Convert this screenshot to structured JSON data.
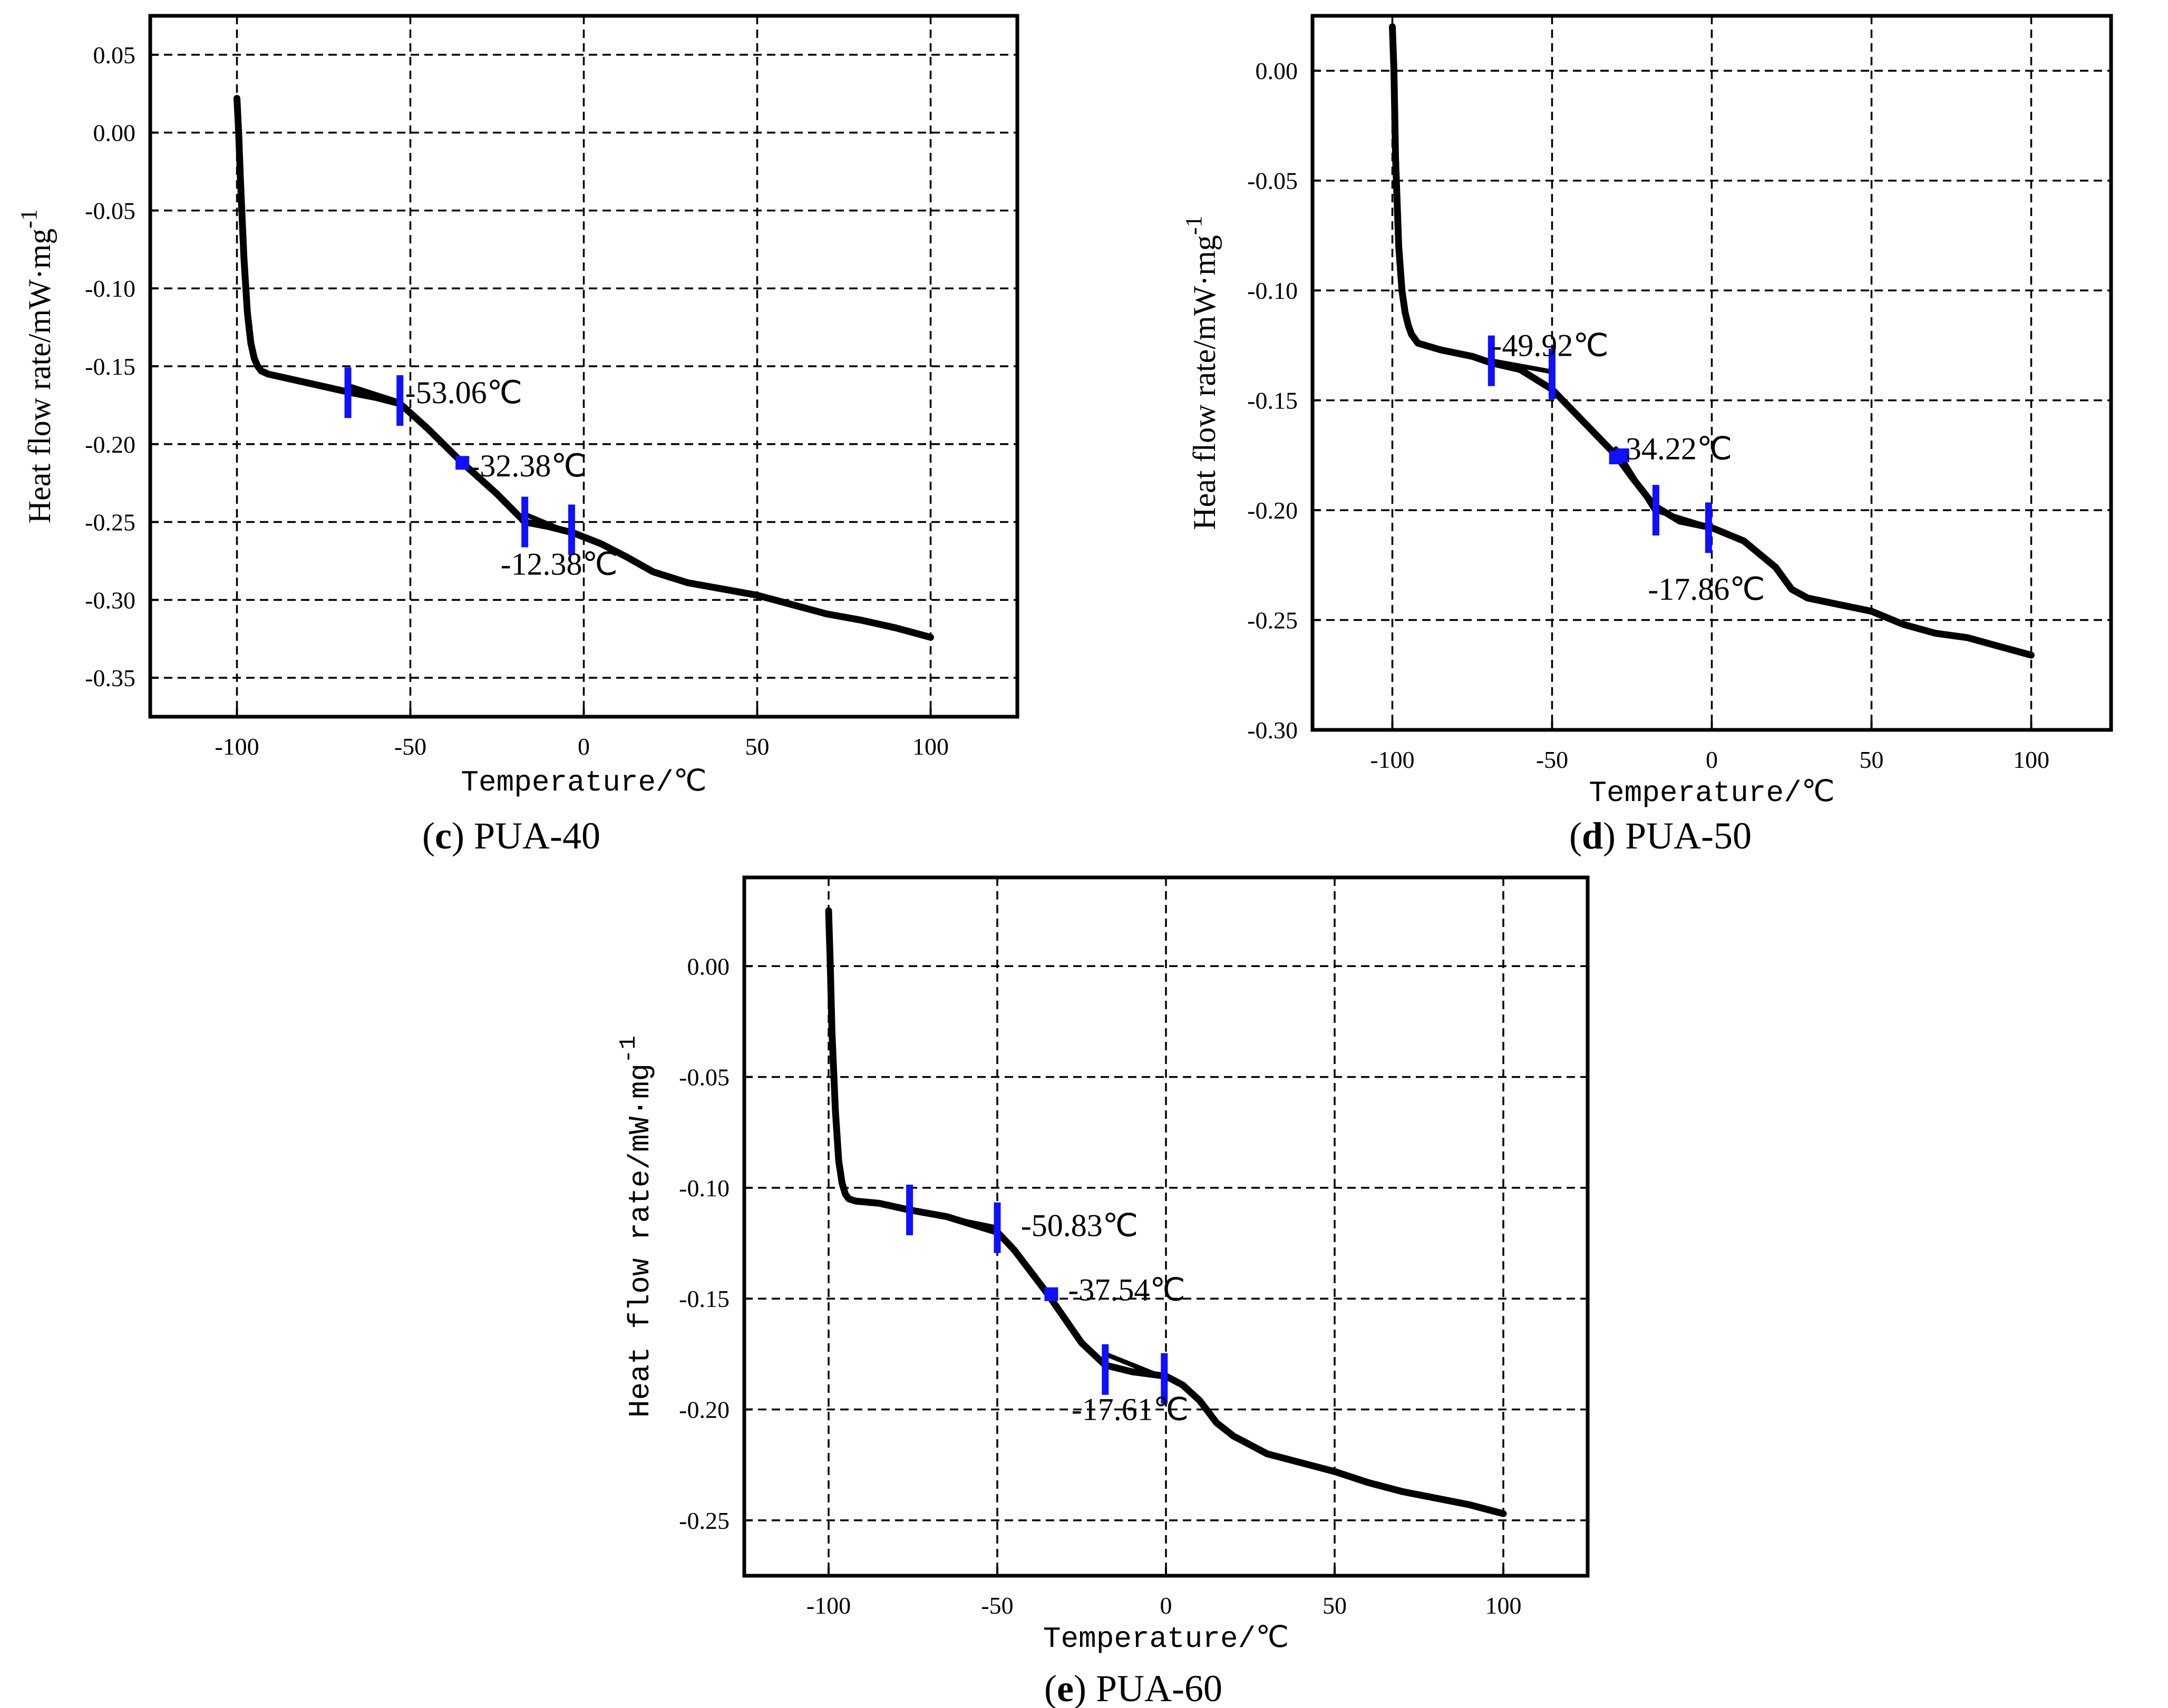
{
  "chart_data": [
    {
      "type": "line",
      "id": "c",
      "caption_letter": "c",
      "caption_text": " PUA-40",
      "xlabel": "Temperature/℃",
      "ylabel": "Heat flow rate/mW·mg",
      "ylabel_sup": "-1",
      "xlim": [
        -125,
        125
      ],
      "ylim": [
        -0.375,
        0.075
      ],
      "xticks": [
        -100,
        -50,
        0,
        50,
        100
      ],
      "xtick_labels": [
        "-100",
        "-50",
        "0",
        "50",
        "100"
      ],
      "yticks": [
        0.05,
        0.0,
        -0.05,
        -0.1,
        -0.15,
        -0.2,
        -0.25,
        -0.3,
        -0.35
      ],
      "ytick_labels": [
        "0.05",
        "0.00",
        "-0.05",
        "-0.10",
        "-0.15",
        "-0.20",
        "-0.25",
        "-0.30",
        "-0.35"
      ],
      "grid": true,
      "series": [
        {
          "name": "PUA-40",
          "x": [
            -100,
            -99.5,
            -99,
            -98,
            -97,
            -96,
            -95,
            -94,
            -93,
            -91,
            -85,
            -75,
            -67,
            -60,
            -53,
            -45,
            -35,
            -25,
            -17,
            -10,
            -3,
            5,
            12,
            20,
            30,
            40,
            50,
            60,
            70,
            80,
            90,
            100
          ],
          "y": [
            0.022,
            0.0,
            -0.03,
            -0.08,
            -0.115,
            -0.135,
            -0.145,
            -0.15,
            -0.153,
            -0.155,
            -0.158,
            -0.163,
            -0.167,
            -0.17,
            -0.174,
            -0.19,
            -0.212,
            -0.232,
            -0.25,
            -0.253,
            -0.257,
            -0.264,
            -0.272,
            -0.282,
            -0.289,
            -0.293,
            -0.297,
            -0.303,
            -0.309,
            -0.313,
            -0.318,
            -0.324
          ]
        }
      ],
      "tangents": [
        [
          -67,
          -0.163,
          -53,
          -0.173
        ],
        [
          -17,
          -0.245,
          -3,
          -0.258
        ]
      ],
      "markers": [
        {
          "type": "bar",
          "x": -68,
          "y": -0.167
        },
        {
          "type": "bar",
          "x": -53,
          "y": -0.172
        },
        {
          "type": "dot",
          "x": -35,
          "y": -0.212
        },
        {
          "type": "bar",
          "x": -17,
          "y": -0.25
        },
        {
          "type": "bar",
          "x": -3.5,
          "y": -0.255
        }
      ],
      "annotations": [
        {
          "text": "-53.06℃",
          "x": -51.5,
          "y": -0.167
        },
        {
          "text": "-32.38℃",
          "x": -33,
          "y": -0.214
        },
        {
          "text": "-12.38℃",
          "x": -24,
          "y": -0.277
        }
      ]
    },
    {
      "type": "line",
      "id": "d",
      "caption_letter": "d",
      "caption_text": " PUA-50",
      "xlabel": "Temperature/℃",
      "ylabel": "Heat flow rate/mW·mg",
      "ylabel_sup": "-1",
      "xlim": [
        -125,
        125
      ],
      "ylim": [
        -0.3,
        0.025
      ],
      "xticks": [
        -100,
        -50,
        0,
        50,
        100
      ],
      "xtick_labels": [
        "-100",
        "-50",
        "0",
        "50",
        "100"
      ],
      "yticks": [
        0.0,
        -0.05,
        -0.1,
        -0.15,
        -0.2,
        -0.25,
        -0.3
      ],
      "ytick_labels": [
        "0.00",
        "-0.05",
        "-0.10",
        "-0.15",
        "-0.20",
        "-0.25",
        "-0.30"
      ],
      "grid": true,
      "series": [
        {
          "name": "PUA-50",
          "x": [
            -100,
            -99.5,
            -99,
            -98,
            -97,
            -96,
            -95,
            -94,
            -92,
            -85,
            -75,
            -69,
            -60,
            -50,
            -40,
            -30,
            -25,
            -18,
            -10,
            0,
            10,
            20,
            25,
            30,
            40,
            50,
            60,
            70,
            80,
            90,
            100
          ],
          "y": [
            0.02,
            0.0,
            -0.04,
            -0.08,
            -0.1,
            -0.11,
            -0.116,
            -0.12,
            -0.124,
            -0.127,
            -0.13,
            -0.133,
            -0.136,
            -0.145,
            -0.16,
            -0.175,
            -0.185,
            -0.198,
            -0.205,
            -0.208,
            -0.214,
            -0.226,
            -0.236,
            -0.24,
            -0.243,
            -0.246,
            -0.252,
            -0.256,
            -0.258,
            -0.262,
            -0.266
          ]
        }
      ],
      "tangents": [
        [
          -69,
          -0.132,
          -50,
          -0.137
        ],
        [
          -30,
          -0.172,
          -18,
          -0.2
        ],
        [
          -18,
          -0.2,
          0,
          -0.208
        ]
      ],
      "markers": [
        {
          "type": "bar",
          "x": -69,
          "y": -0.132
        },
        {
          "type": "bar",
          "x": -50,
          "y": -0.138
        },
        {
          "type": "dot",
          "x": -30,
          "y": -0.176
        },
        {
          "type": "dot",
          "x": -28,
          "y": -0.175
        },
        {
          "type": "bar",
          "x": -17.5,
          "y": -0.2
        },
        {
          "type": "bar",
          "x": -1,
          "y": -0.208
        }
      ],
      "annotations": [
        {
          "text": "-49.92℃",
          "x": -69,
          "y": -0.125
        },
        {
          "text": "34.22℃",
          "x": -27,
          "y": -0.172
        },
        {
          "text": "-17.86℃",
          "x": -20,
          "y": -0.236
        }
      ]
    },
    {
      "type": "line",
      "id": "e",
      "caption_letter": "e",
      "caption_text": " PUA-60",
      "xlabel": "Temperature/℃",
      "ylabel": "Heat flow rate/mW·mg",
      "ylabel_sup": "-1",
      "ylabel_mono": true,
      "xlim": [
        -125,
        125
      ],
      "ylim": [
        -0.275,
        0.04
      ],
      "xticks": [
        -100,
        -50,
        0,
        50,
        100
      ],
      "xtick_labels": [
        "-100",
        "-50",
        "0",
        "50",
        "100"
      ],
      "yticks": [
        0.0,
        -0.05,
        -0.1,
        -0.15,
        -0.2,
        -0.25
      ],
      "ytick_labels": [
        "0.00",
        "-0.05",
        "-0.10",
        "-0.15",
        "-0.20",
        "-0.25"
      ],
      "grid": true,
      "series": [
        {
          "name": "PUA-60",
          "x": [
            -100,
            -99.5,
            -99,
            -98,
            -97,
            -96,
            -95,
            -94,
            -92,
            -85,
            -76,
            -65,
            -50,
            -45,
            -35,
            -25,
            -18,
            -10,
            0,
            5,
            10,
            15,
            20,
            25,
            30,
            40,
            50,
            60,
            70,
            80,
            90,
            100
          ],
          "y": [
            0.025,
            0.0,
            -0.03,
            -0.065,
            -0.088,
            -0.098,
            -0.103,
            -0.105,
            -0.106,
            -0.107,
            -0.11,
            -0.113,
            -0.12,
            -0.128,
            -0.148,
            -0.17,
            -0.18,
            -0.183,
            -0.185,
            -0.189,
            -0.196,
            -0.206,
            -0.212,
            -0.216,
            -0.22,
            -0.224,
            -0.228,
            -0.233,
            -0.237,
            -0.24,
            -0.243,
            -0.247
          ]
        }
      ],
      "tangents": [
        [
          -76,
          -0.11,
          -50,
          -0.118
        ],
        [
          -18,
          -0.175,
          0,
          -0.186
        ]
      ],
      "markers": [
        {
          "type": "bar",
          "x": -76,
          "y": -0.11
        },
        {
          "type": "bar",
          "x": -50,
          "y": -0.118
        },
        {
          "type": "dot",
          "x": -34,
          "y": -0.148
        },
        {
          "type": "bar",
          "x": -18,
          "y": -0.182
        },
        {
          "type": "bar",
          "x": -0.5,
          "y": -0.186
        }
      ],
      "annotations": [
        {
          "text": "-50.83℃",
          "x": -43,
          "y": -0.117
        },
        {
          "text": "-37.54℃",
          "x": -29,
          "y": -0.146
        },
        {
          "text": "-17.61℃",
          "x": -28,
          "y": -0.2
        }
      ]
    }
  ]
}
